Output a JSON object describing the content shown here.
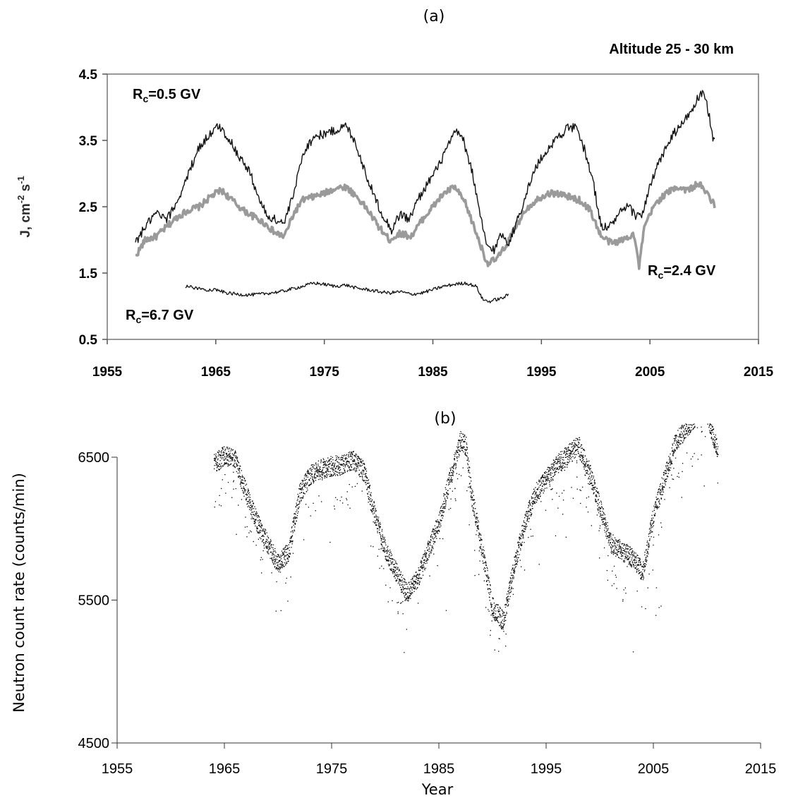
{
  "figure": {
    "panel_a_label": "(a)",
    "panel_b_label": "(b)"
  },
  "chart_data": [
    {
      "type": "line",
      "panel": "(a)",
      "title": "Altitude 25 - 30 km",
      "xlabel": "",
      "ylabel": "J, cm-2 s-1",
      "xlim": [
        1955,
        2015
      ],
      "ylim": [
        0.5,
        4.5
      ],
      "x_ticks": [
        1955,
        1965,
        1975,
        1985,
        1995,
        2005,
        2015
      ],
      "y_ticks": [
        "0.5",
        "1.5",
        "2.5",
        "3.5",
        "4.5"
      ],
      "grid": false,
      "annotations": [
        "Rc=0.5 GV",
        "Rc=2.4 GV",
        "Rc=6.7 GV"
      ],
      "series": [
        {
          "name": "Rc=0.5 GV",
          "color": "#111111",
          "x": [
            1957.6,
            1958.5,
            1959.5,
            1960.5,
            1961.5,
            1962.5,
            1963.3,
            1964.2,
            1965.3,
            1966.3,
            1967.2,
            1968.2,
            1969.0,
            1969.8,
            1970.6,
            1971.3,
            1972.2,
            1973.0,
            1974.0,
            1975.0,
            1976.0,
            1977.0,
            1977.8,
            1978.6,
            1979.5,
            1980.3,
            1981.2,
            1982.0,
            1982.8,
            1983.6,
            1984.5,
            1985.5,
            1986.5,
            1987.2,
            1987.8,
            1988.6,
            1989.3,
            1990.0,
            1990.7,
            1991.3,
            1992.0,
            1992.8,
            1993.6,
            1994.5,
            1995.5,
            1996.5,
            1997.5,
            1998.2,
            1999.0,
            1999.8,
            2000.5,
            2001.3,
            2002.2,
            2003.0,
            2003.8,
            2004.3,
            2005.0,
            2005.8,
            2006.5,
            2007.2,
            2008.0,
            2008.8,
            2009.5,
            2009.9,
            2010.3,
            2010.6,
            2010.8,
            2011.0
          ],
          "values": [
            1.95,
            2.2,
            2.4,
            2.3,
            2.6,
            3.0,
            3.35,
            3.55,
            3.72,
            3.5,
            3.25,
            3.0,
            2.6,
            2.35,
            2.3,
            2.25,
            2.7,
            3.3,
            3.55,
            3.6,
            3.65,
            3.72,
            3.5,
            3.1,
            2.7,
            2.4,
            2.15,
            2.4,
            2.3,
            2.6,
            2.85,
            3.1,
            3.45,
            3.65,
            3.5,
            3.05,
            2.4,
            1.9,
            1.85,
            2.1,
            1.95,
            2.3,
            2.7,
            3.1,
            3.35,
            3.55,
            3.7,
            3.68,
            3.35,
            2.85,
            2.2,
            2.2,
            2.4,
            2.5,
            2.35,
            2.4,
            2.8,
            3.15,
            3.4,
            3.6,
            3.75,
            3.95,
            4.15,
            4.2,
            4.0,
            3.75,
            3.55,
            3.5
          ]
        },
        {
          "name": "Rc=2.4 GV",
          "color": "#9a9a9a",
          "x": [
            1957.6,
            1958.5,
            1959.5,
            1960.5,
            1961.5,
            1962.5,
            1963.5,
            1964.5,
            1965.5,
            1966.5,
            1967.5,
            1968.5,
            1969.5,
            1970.5,
            1971.3,
            1972.2,
            1973.0,
            1974.0,
            1975.0,
            1976.0,
            1977.0,
            1978.0,
            1979.0,
            1980.0,
            1981.0,
            1982.0,
            1983.0,
            1984.0,
            1985.0,
            1986.0,
            1987.0,
            1988.0,
            1989.0,
            1990.0,
            1990.8,
            1991.5,
            1992.5,
            1993.5,
            1994.5,
            1995.5,
            1996.5,
            1997.5,
            1998.5,
            1999.5,
            2000.5,
            2001.5,
            2002.5,
            2003.5,
            2004.0,
            2004.5,
            2005.5,
            2006.5,
            2007.5,
            2008.5,
            2009.5,
            2010.5,
            2011.0
          ],
          "values": [
            1.75,
            2.0,
            2.05,
            2.2,
            2.35,
            2.45,
            2.5,
            2.65,
            2.75,
            2.6,
            2.45,
            2.35,
            2.25,
            2.1,
            2.05,
            2.4,
            2.6,
            2.65,
            2.7,
            2.78,
            2.8,
            2.65,
            2.45,
            2.2,
            2.0,
            2.1,
            2.05,
            2.3,
            2.5,
            2.7,
            2.8,
            2.55,
            2.1,
            1.65,
            1.7,
            1.85,
            2.15,
            2.45,
            2.6,
            2.7,
            2.7,
            2.65,
            2.6,
            2.45,
            2.05,
            1.95,
            2.0,
            2.1,
            1.6,
            2.2,
            2.55,
            2.7,
            2.8,
            2.75,
            2.85,
            2.65,
            2.5
          ]
        },
        {
          "name": "Rc=6.7 GV",
          "color": "#111111",
          "x": [
            1962.2,
            1963.0,
            1964.0,
            1965.0,
            1966.0,
            1967.0,
            1968.0,
            1969.0,
            1970.0,
            1971.0,
            1972.0,
            1973.0,
            1974.0,
            1975.0,
            1976.0,
            1977.0,
            1978.0,
            1979.0,
            1980.0,
            1981.0,
            1982.0,
            1983.0,
            1984.0,
            1985.0,
            1986.0,
            1987.0,
            1988.0,
            1989.0,
            1989.6,
            1990.2,
            1990.8,
            1991.4,
            1992.0
          ],
          "values": [
            1.3,
            1.28,
            1.25,
            1.25,
            1.2,
            1.18,
            1.17,
            1.18,
            1.2,
            1.22,
            1.26,
            1.3,
            1.35,
            1.33,
            1.3,
            1.32,
            1.27,
            1.25,
            1.22,
            1.2,
            1.22,
            1.18,
            1.2,
            1.25,
            1.3,
            1.33,
            1.35,
            1.3,
            1.1,
            1.07,
            1.1,
            1.12,
            1.18
          ]
        }
      ]
    },
    {
      "type": "scatter",
      "panel": "(b)",
      "title": "",
      "xlabel": "Year",
      "ylabel": "Neutron count rate (counts/min)",
      "xlim": [
        1955,
        2015
      ],
      "ylim": [
        4500,
        6500
      ],
      "x_ticks": [
        1955,
        1965,
        1975,
        1985,
        1995,
        2005,
        2015
      ],
      "y_ticks": [
        "4500",
        "5500",
        "6500"
      ],
      "grid": false,
      "color": "#000000",
      "trend": {
        "x": [
          1964.0,
          1965.0,
          1966.0,
          1967.0,
          1968.0,
          1969.0,
          1970.0,
          1971.0,
          1972.0,
          1973.0,
          1974.0,
          1975.0,
          1976.0,
          1977.0,
          1978.0,
          1979.0,
          1980.0,
          1981.0,
          1982.0,
          1983.0,
          1984.0,
          1985.0,
          1986.0,
          1987.0,
          1987.5,
          1988.0,
          1989.0,
          1990.0,
          1991.0,
          1992.0,
          1993.0,
          1994.0,
          1995.0,
          1996.0,
          1997.0,
          1998.0,
          1999.0,
          2000.0,
          2001.0,
          2002.0,
          2003.0,
          2004.0,
          2005.0,
          2006.0,
          2007.0,
          2008.0,
          2009.0,
          2009.8,
          2010.5,
          2011.0
        ],
        "values": [
          6450,
          6520,
          6480,
          6250,
          6050,
          5900,
          5750,
          5850,
          6250,
          6380,
          6420,
          6440,
          6450,
          6480,
          6400,
          6100,
          5850,
          5700,
          5550,
          5650,
          5850,
          6050,
          6350,
          6620,
          6580,
          6250,
          5850,
          5450,
          5350,
          5750,
          6050,
          6250,
          6350,
          6450,
          6520,
          6580,
          6400,
          6150,
          5900,
          5850,
          5800,
          5700,
          6100,
          6350,
          6600,
          6700,
          6800,
          6900,
          6650,
          6550
        ]
      }
    }
  ]
}
